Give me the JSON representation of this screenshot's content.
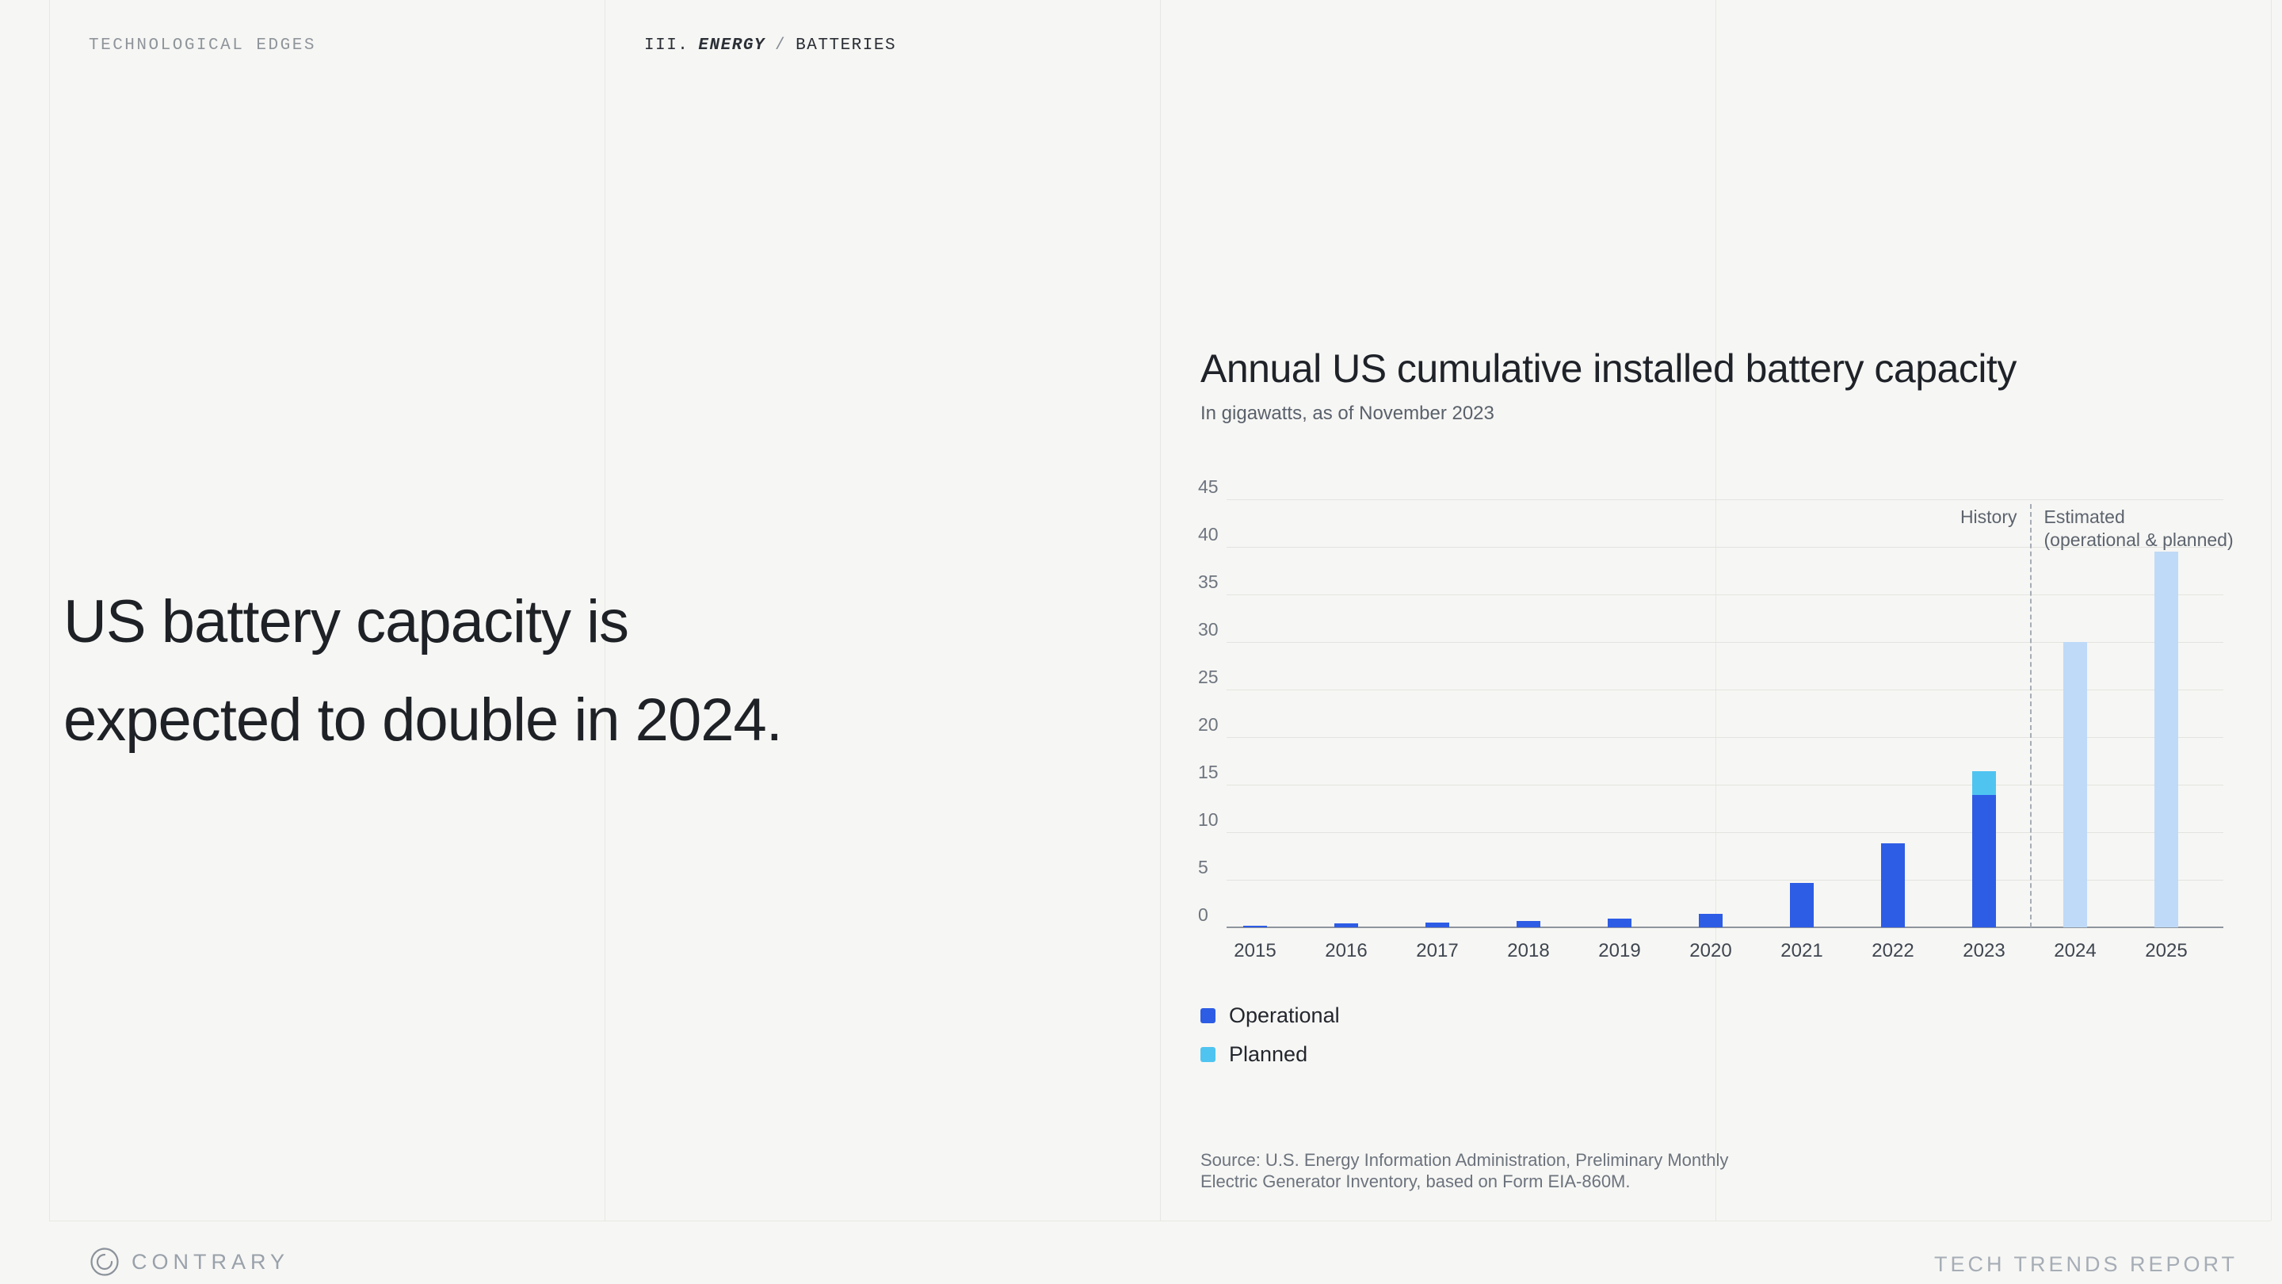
{
  "page": {
    "background": "#f6f6f4"
  },
  "header": {
    "left_label": "TECHNOLOGICAL EDGES",
    "breadcrumb": {
      "chapter": "III.",
      "section": "ENERGY",
      "separator": "/",
      "page": "BATTERIES"
    }
  },
  "headline": {
    "line1": "US battery capacity is",
    "line2": "expected to double in 2024."
  },
  "chart_data": {
    "type": "bar",
    "title": "Annual US cumulative installed battery capacity",
    "subtitle": "In gigawatts, as of November 2023",
    "categories": [
      "2015",
      "2016",
      "2017",
      "2018",
      "2019",
      "2020",
      "2021",
      "2022",
      "2023",
      "2024",
      "2025"
    ],
    "series": [
      {
        "name": "Operational",
        "color": "#2D5CE5",
        "values": [
          0.2,
          0.4,
          0.5,
          0.7,
          0.9,
          1.4,
          4.7,
          8.8,
          13.9,
          null,
          null
        ]
      },
      {
        "name": "Planned",
        "color": "#4FC4F1",
        "values": [
          null,
          null,
          null,
          null,
          null,
          null,
          null,
          null,
          2.5,
          null,
          null
        ]
      },
      {
        "name": "Estimated",
        "color": "#BEDAF8",
        "values": [
          null,
          null,
          null,
          null,
          null,
          null,
          null,
          null,
          null,
          30,
          39.5
        ]
      }
    ],
    "ylim": [
      0,
      45
    ],
    "ytick_step": 5,
    "grid": true,
    "history_end_index": 8,
    "annotations": {
      "history": "History",
      "estimated_line1": "Estimated",
      "estimated_line2": "(operational & planned)"
    },
    "legend": [
      {
        "label": "Operational",
        "color": "#2D5CE5"
      },
      {
        "label": "Planned",
        "color": "#4FC4F1"
      }
    ],
    "legend_position": "bottom-left",
    "source": [
      "Source: U.S. Energy Information Administration, Preliminary Monthly",
      "Electric Generator Inventory, based on Form EIA-860M."
    ]
  },
  "footer": {
    "brand": "CONTRARY",
    "report": "TECH TRENDS REPORT"
  }
}
